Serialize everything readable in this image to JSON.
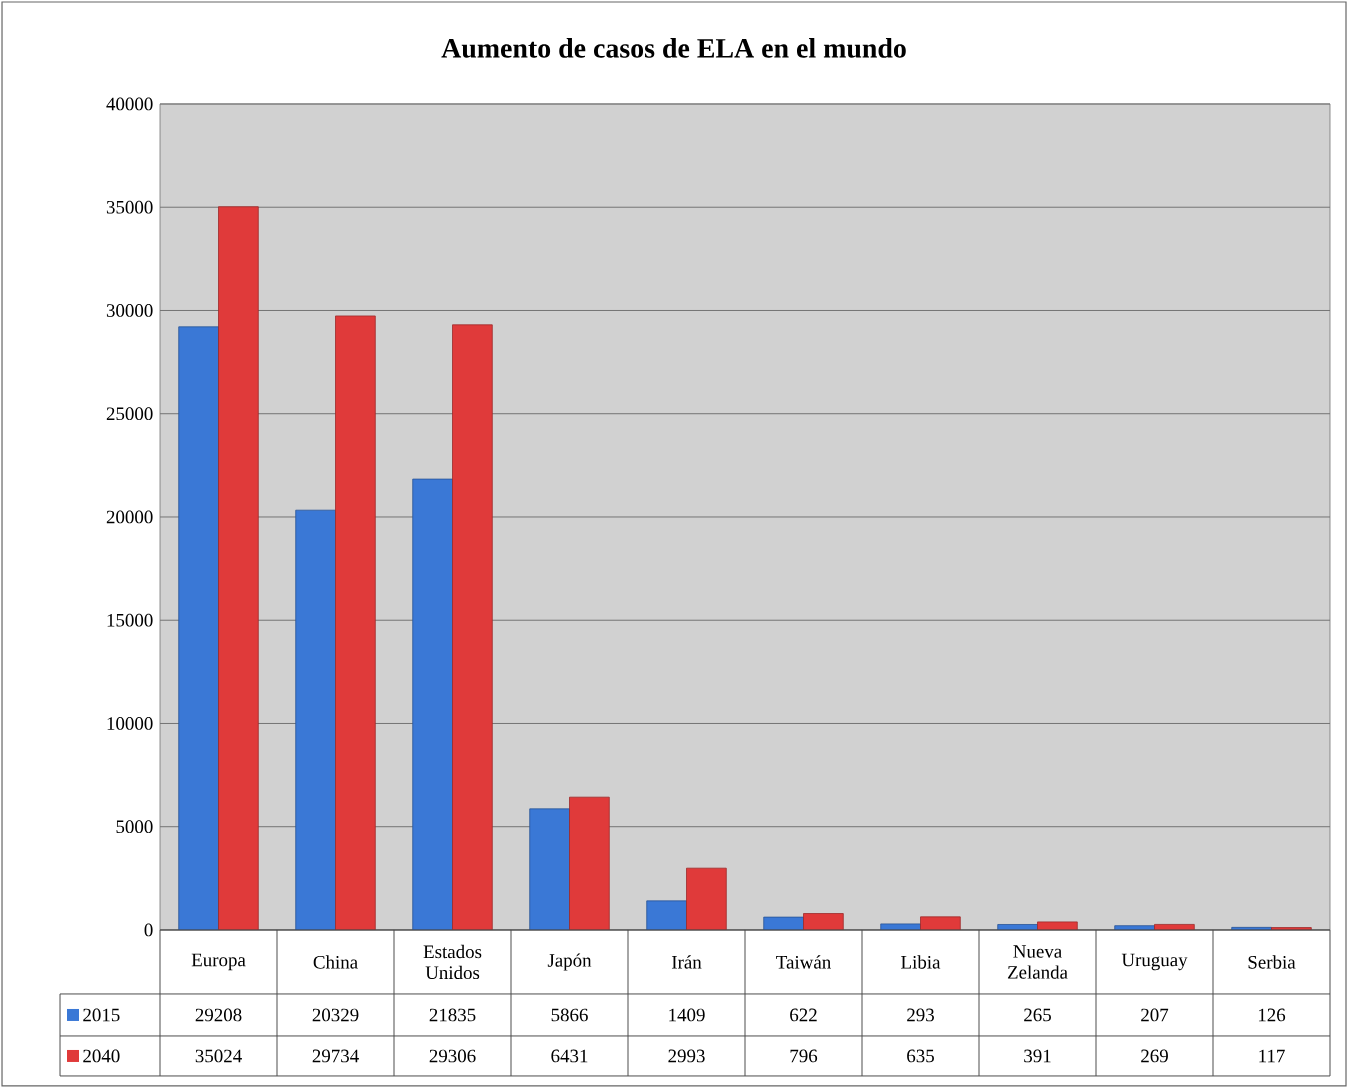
{
  "chart_data": {
    "type": "bar",
    "title": "Aumento de casos de ELA en el mundo",
    "categories": [
      "Europa",
      "China",
      "Estados Unidos",
      "Japón",
      "Irán",
      "Taiwán",
      "Libia",
      "Nueva Zelanda",
      "Uruguay",
      "Serbia"
    ],
    "series": [
      {
        "name": "2015",
        "color": "#3a78d6",
        "values": [
          29208,
          20329,
          21835,
          5866,
          1409,
          622,
          293,
          265,
          207,
          126
        ]
      },
      {
        "name": "2040",
        "color": "#e03a3a",
        "values": [
          35024,
          29734,
          29306,
          6431,
          2993,
          796,
          635,
          391,
          269,
          117
        ]
      }
    ],
    "ylim": [
      0,
      40000
    ],
    "yticks": [
      0,
      5000,
      10000,
      15000,
      20000,
      25000,
      30000,
      35000,
      40000
    ],
    "grid": "y",
    "legend": "bottom",
    "data_labels": true
  }
}
